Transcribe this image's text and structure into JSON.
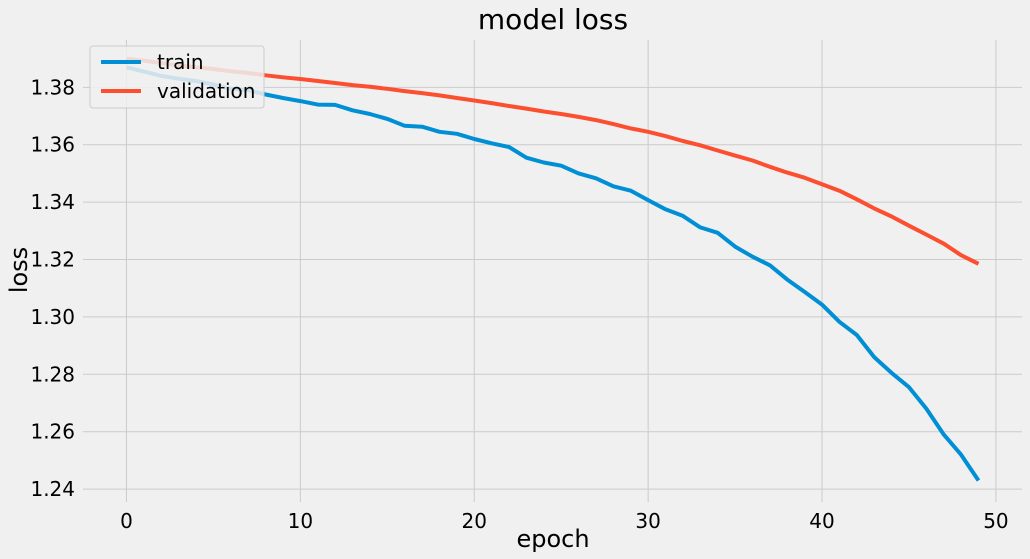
{
  "chart_data": {
    "type": "line",
    "title": "model loss",
    "xlabel": "epoch",
    "ylabel": "loss",
    "xlim": [
      -2.5,
      51.5
    ],
    "ylim": [
      1.2355,
      1.3965
    ],
    "xticks": [
      0,
      10,
      20,
      30,
      40,
      50
    ],
    "yticks": [
      1.24,
      1.26,
      1.28,
      1.3,
      1.32,
      1.34,
      1.36,
      1.38
    ],
    "grid": true,
    "legend_position": "upper-left",
    "x": [
      0,
      1,
      2,
      3,
      4,
      5,
      6,
      7,
      8,
      9,
      10,
      11,
      12,
      13,
      14,
      15,
      16,
      17,
      18,
      19,
      20,
      21,
      22,
      23,
      24,
      25,
      26,
      27,
      28,
      29,
      30,
      31,
      32,
      33,
      34,
      35,
      36,
      37,
      38,
      39,
      40,
      41,
      42,
      43,
      44,
      45,
      46,
      47,
      48,
      49
    ],
    "series": [
      {
        "name": "train",
        "color": "#008fd5",
        "values": [
          1.387,
          1.3855,
          1.384,
          1.383,
          1.3822,
          1.381,
          1.3795,
          1.379,
          1.3775,
          1.3763,
          1.3752,
          1.374,
          1.3739,
          1.372,
          1.3707,
          1.369,
          1.3666,
          1.3663,
          1.3645,
          1.3638,
          1.362,
          1.3605,
          1.3592,
          1.3555,
          1.3538,
          1.3527,
          1.35,
          1.3483,
          1.3455,
          1.344,
          1.3407,
          1.3375,
          1.3352,
          1.3312,
          1.3293,
          1.3245,
          1.321,
          1.318,
          1.313,
          1.3087,
          1.3043,
          1.2983,
          1.2937,
          1.286,
          1.2805,
          1.2755,
          1.268,
          1.259,
          1.252,
          1.243
        ]
      },
      {
        "name": "validation",
        "color": "#fc4f30",
        "values": [
          1.39,
          1.3893,
          1.3885,
          1.3877,
          1.387,
          1.3864,
          1.3856,
          1.385,
          1.3842,
          1.3835,
          1.3829,
          1.3822,
          1.3815,
          1.3808,
          1.3802,
          1.3795,
          1.3787,
          1.378,
          1.3772,
          1.3763,
          1.3754,
          1.3745,
          1.3735,
          1.3726,
          1.3716,
          1.3707,
          1.3697,
          1.3686,
          1.3672,
          1.3657,
          1.3645,
          1.363,
          1.3613,
          1.3598,
          1.358,
          1.3562,
          1.3545,
          1.3523,
          1.3503,
          1.3485,
          1.3462,
          1.344,
          1.341,
          1.3378,
          1.335,
          1.3318,
          1.3287,
          1.3255,
          1.3215,
          1.3185
        ]
      }
    ]
  }
}
